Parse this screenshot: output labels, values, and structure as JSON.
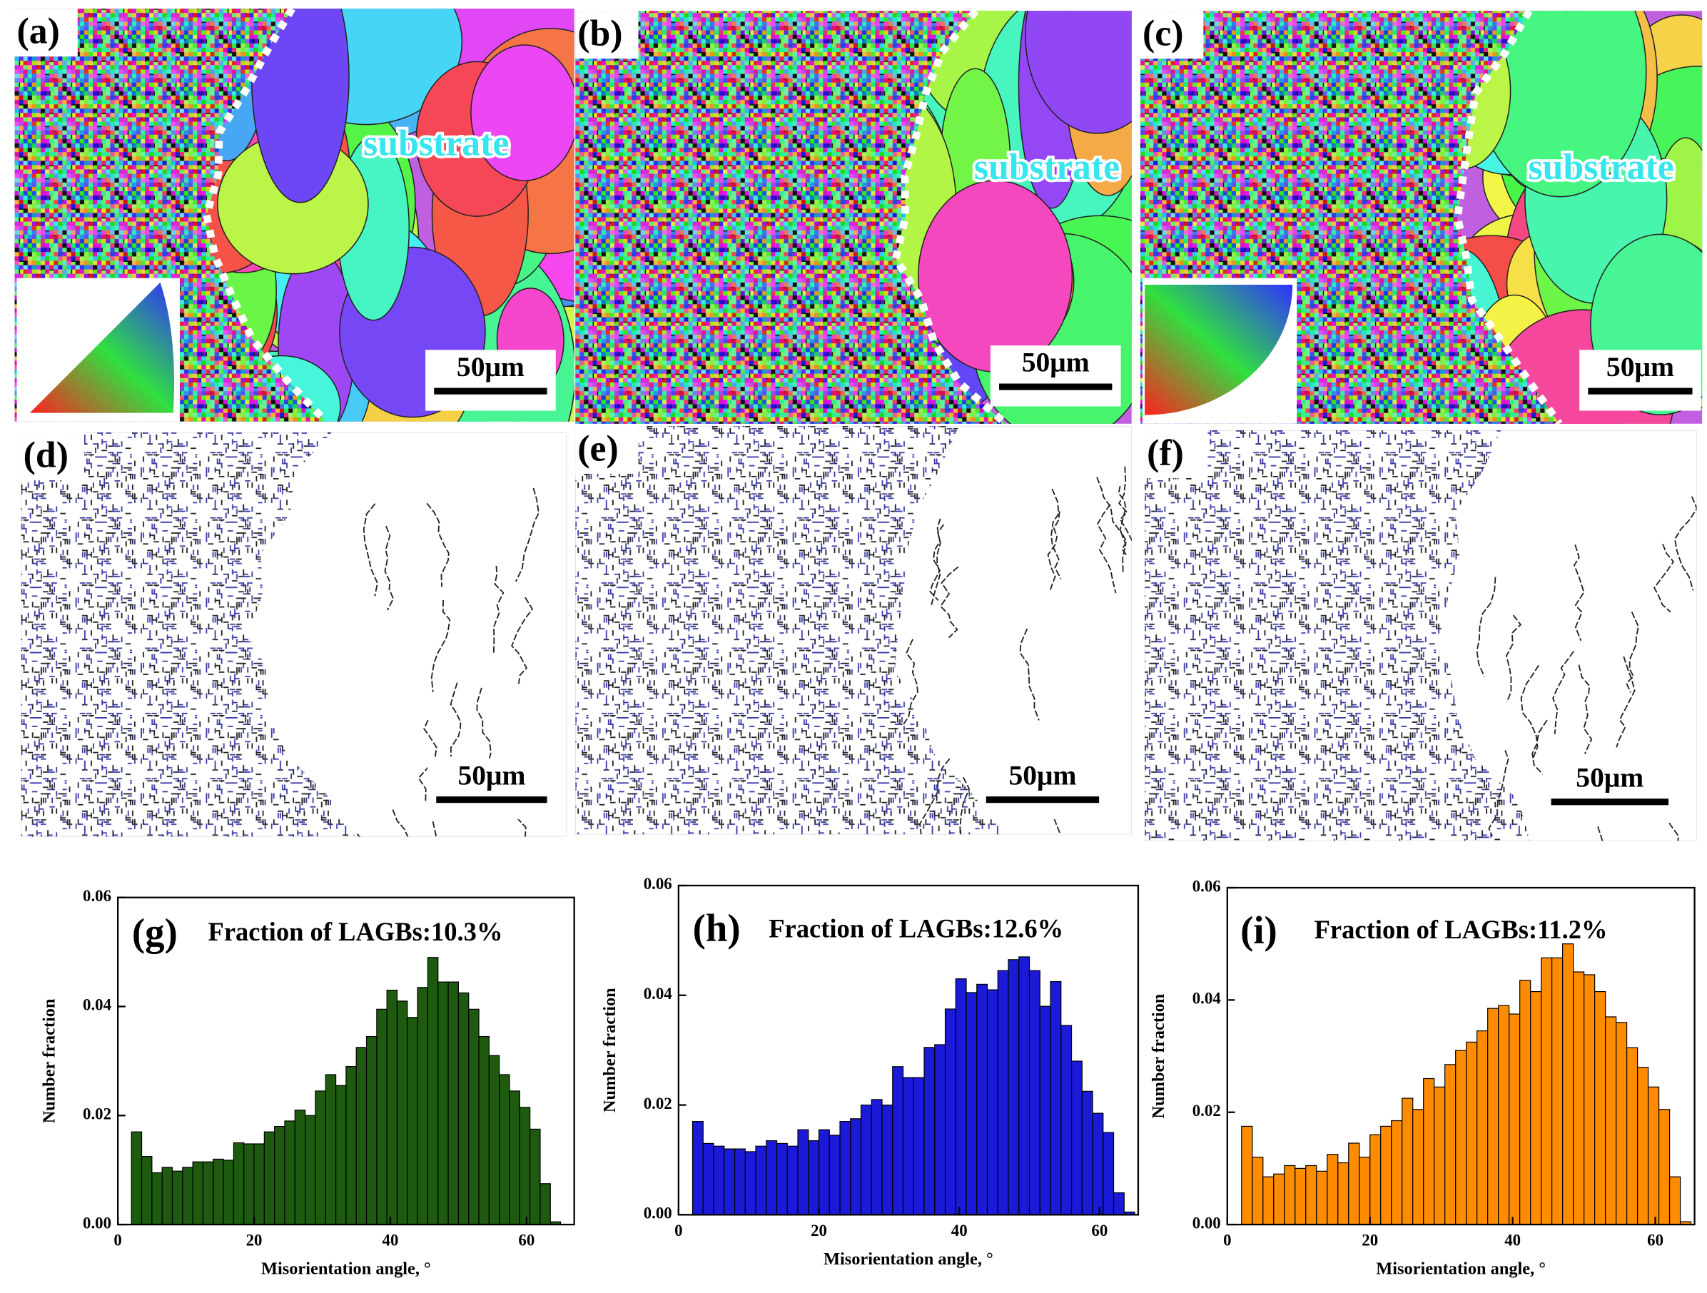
{
  "panels": [
    {
      "label": "(a)",
      "annotation": "substrate",
      "scale_bar": "50μm"
    },
    {
      "label": "(b)",
      "annotation": "substrate",
      "scale_bar": "50μm"
    },
    {
      "label": "(c)",
      "annotation": "substrate",
      "scale_bar": "50μm"
    },
    {
      "label": "(d)",
      "scale_bar": "50μm"
    },
    {
      "label": "(e)",
      "scale_bar": "50μm"
    },
    {
      "label": "(f)",
      "scale_bar": "50μm"
    }
  ],
  "chart_data": [
    {
      "type": "histogram",
      "panel_label": "(g)",
      "title": "Fraction of LAGBs:10.3%",
      "xlabel": "Misorientation angle, °",
      "ylabel": "Number fraction",
      "color": "#1e5a10",
      "bins": [
        2,
        3.5,
        5,
        6.5,
        8,
        9.5,
        11,
        12.5,
        14,
        15.5,
        17,
        18.5,
        20,
        21.5,
        23,
        24.5,
        26,
        27.5,
        29,
        30.5,
        32,
        33.5,
        35,
        36.5,
        38,
        39.5,
        41,
        42.5,
        44,
        45.5,
        47,
        48.5,
        50,
        51.5,
        53,
        54.5,
        56,
        57.5,
        59,
        60.5,
        62,
        63.5,
        65
      ],
      "values": [
        0.017,
        0.0125,
        0.0095,
        0.0105,
        0.0098,
        0.0105,
        0.0115,
        0.0115,
        0.012,
        0.0118,
        0.015,
        0.0148,
        0.0148,
        0.017,
        0.018,
        0.019,
        0.021,
        0.02,
        0.0245,
        0.0275,
        0.0255,
        0.029,
        0.0325,
        0.0345,
        0.0395,
        0.043,
        0.041,
        0.038,
        0.0435,
        0.049,
        0.0445,
        0.0445,
        0.0425,
        0.0395,
        0.0345,
        0.031,
        0.0275,
        0.0245,
        0.0215,
        0.0175,
        0.0075,
        0.0005
      ],
      "xlim": [
        0,
        67
      ],
      "xticks": [
        0,
        20,
        40,
        60
      ],
      "ylim": [
        0,
        0.06
      ],
      "yticks": [
        {
          "value": 0,
          "label": "0.00"
        },
        {
          "value": 0.02,
          "label": "0.02"
        },
        {
          "value": 0.04,
          "label": "0.04"
        },
        {
          "value": 0.06,
          "label": "0.06"
        }
      ]
    },
    {
      "type": "histogram",
      "panel_label": "(h)",
      "title": "Fraction of LAGBs:12.6%",
      "xlabel": "Misorientation angle, °",
      "ylabel": "Number fraction",
      "color": "#1a1ad8",
      "bins": [
        2,
        3.5,
        5,
        6.5,
        8,
        9.5,
        11,
        12.5,
        14,
        15.5,
        17,
        18.5,
        20,
        21.5,
        23,
        24.5,
        26,
        27.5,
        29,
        30.5,
        32,
        33.5,
        35,
        36.5,
        38,
        39.5,
        41,
        42.5,
        44,
        45.5,
        47,
        48.5,
        50,
        51.5,
        53,
        54.5,
        56,
        57.5,
        59,
        60.5,
        62,
        63.5,
        65
      ],
      "values": [
        0.017,
        0.013,
        0.0125,
        0.012,
        0.012,
        0.0115,
        0.0125,
        0.0135,
        0.013,
        0.0125,
        0.0155,
        0.0135,
        0.0155,
        0.0145,
        0.017,
        0.0175,
        0.02,
        0.021,
        0.02,
        0.027,
        0.025,
        0.025,
        0.0305,
        0.031,
        0.0375,
        0.043,
        0.0405,
        0.042,
        0.041,
        0.0445,
        0.0465,
        0.047,
        0.0445,
        0.038,
        0.0425,
        0.0345,
        0.028,
        0.0225,
        0.0185,
        0.015,
        0.004,
        0.0005
      ],
      "xlim": [
        0,
        65.5
      ],
      "xticks": [
        0,
        20,
        40,
        60
      ],
      "ylim": [
        0,
        0.06
      ],
      "yticks": [
        {
          "value": 0,
          "label": "0.00"
        },
        {
          "value": 0.02,
          "label": "0.02"
        },
        {
          "value": 0.04,
          "label": "0.04"
        },
        {
          "value": 0.06,
          "label": "0.06"
        }
      ]
    },
    {
      "type": "histogram",
      "panel_label": "(i)",
      "title": "Fraction of LAGBs:11.2%",
      "xlabel": "Misorientation angle, °",
      "ylabel": "Number fraction",
      "color": "#ff8c00",
      "bins": [
        2,
        3.5,
        5,
        6.5,
        8,
        9.5,
        11,
        12.5,
        14,
        15.5,
        17,
        18.5,
        20,
        21.5,
        23,
        24.5,
        26,
        27.5,
        29,
        30.5,
        32,
        33.5,
        35,
        36.5,
        38,
        39.5,
        41,
        42.5,
        44,
        45.5,
        47,
        48.5,
        50,
        51.5,
        53,
        54.5,
        56,
        57.5,
        59,
        60.5,
        62,
        63.5,
        65
      ],
      "values": [
        0.0175,
        0.012,
        0.0085,
        0.009,
        0.0105,
        0.01,
        0.0105,
        0.0095,
        0.0125,
        0.011,
        0.0145,
        0.012,
        0.016,
        0.0175,
        0.0185,
        0.0225,
        0.0205,
        0.026,
        0.0245,
        0.0285,
        0.031,
        0.0325,
        0.0345,
        0.0385,
        0.039,
        0.0375,
        0.0435,
        0.0415,
        0.0475,
        0.0475,
        0.05,
        0.045,
        0.0445,
        0.0415,
        0.037,
        0.036,
        0.0315,
        0.028,
        0.0245,
        0.0205,
        0.0085,
        0.0005
      ],
      "xlim": [
        0,
        65.5
      ],
      "xticks": [
        0,
        20,
        40,
        60
      ],
      "ylim": [
        0,
        0.06
      ],
      "yticks": [
        {
          "value": 0,
          "label": "0.00"
        },
        {
          "value": 0.02,
          "label": "0.02"
        },
        {
          "value": 0.04,
          "label": "0.04"
        },
        {
          "value": 0.06,
          "label": "0.06"
        }
      ]
    }
  ]
}
